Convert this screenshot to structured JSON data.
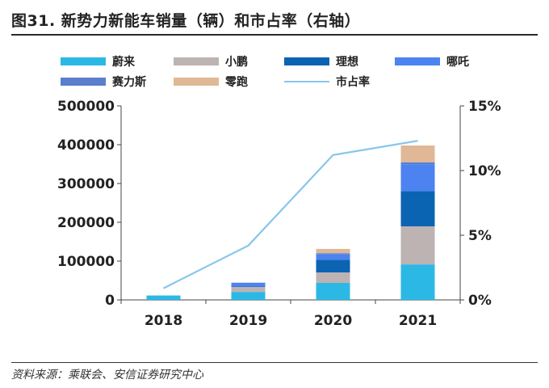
{
  "header": {
    "title": "图31. 新势力新能车销量（辆）和市占率（右轴）"
  },
  "source": "资料来源：乘联会、安信证券研究中心",
  "chart_data": {
    "type": "bar",
    "stacked": true,
    "categories": [
      "2018",
      "2019",
      "2020",
      "2021"
    ],
    "series": [
      {
        "name": "蔚来",
        "color": "#2cb8e5",
        "values": [
          11348,
          20565,
          43728,
          91429
        ]
      },
      {
        "name": "小鹏",
        "color": "#bdb3b3",
        "values": [
          0,
          12728,
          27041,
          98155
        ]
      },
      {
        "name": "理想",
        "color": "#0b64b2",
        "values": [
          0,
          1000,
          32624,
          90491
        ]
      },
      {
        "name": "哪吒",
        "color": "#4d83f0",
        "values": [
          0,
          10000,
          15000,
          69674
        ]
      },
      {
        "name": "赛力斯",
        "color": "#5a7fcc",
        "values": [
          0,
          0,
          2000,
          5000
        ]
      },
      {
        "name": "零跑",
        "color": "#e0b895",
        "values": [
          0,
          0,
          11000,
          43121
        ]
      }
    ],
    "line": {
      "name": "市占率",
      "axis": "right",
      "color": "#88c6ea",
      "values": [
        0.9,
        4.2,
        11.2,
        12.3
      ]
    },
    "ylim": [
      0,
      500000
    ],
    "yticks": [
      "0",
      "100000",
      "200000",
      "300000",
      "400000",
      "500000"
    ],
    "y2lim": [
      0,
      15
    ],
    "y2ticks": [
      "0%",
      "5%",
      "10%",
      "15%"
    ],
    "legend_position": "top"
  }
}
